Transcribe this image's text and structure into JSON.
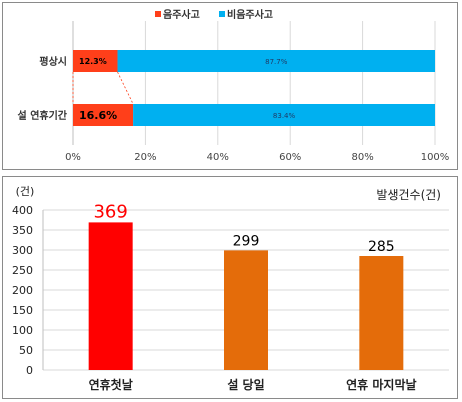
{
  "chart_data": [
    {
      "type": "bar",
      "orientation": "horizontal",
      "stacked": true,
      "percent": true,
      "categories": [
        "평상시",
        "설 연휴기간"
      ],
      "series": [
        {
          "name": "음주사고",
          "values": [
            12.3,
            16.6
          ],
          "labels": [
            "12.3%",
            "16.6%"
          ],
          "color": "#ff3f1a"
        },
        {
          "name": "비음주사고",
          "values": [
            87.7,
            83.4
          ],
          "labels": [
            "87.7%",
            "83.4%"
          ],
          "color": "#00b0f0"
        }
      ],
      "xlim": [
        0,
        100
      ],
      "xticks": [
        "0%",
        "20%",
        "40%",
        "60%",
        "80%",
        "100%"
      ],
      "legend": "top",
      "grid": true
    },
    {
      "type": "bar",
      "categories": [
        "연휴첫날",
        "설 당일",
        "연휴 마지막날"
      ],
      "values": [
        369,
        299,
        285
      ],
      "value_labels": [
        "369",
        "299",
        "285"
      ],
      "colors": [
        "#ff0000",
        "#e46c0a",
        "#e46c0a"
      ],
      "label_colors": [
        "#ff0000",
        "#000000",
        "#000000"
      ],
      "ylim": [
        0,
        400
      ],
      "yticks": [
        "0",
        "50",
        "100",
        "150",
        "200",
        "250",
        "300",
        "350",
        "400"
      ],
      "yunit": "(건)",
      "legend_text": "발생건수(건)",
      "grid": true
    }
  ]
}
